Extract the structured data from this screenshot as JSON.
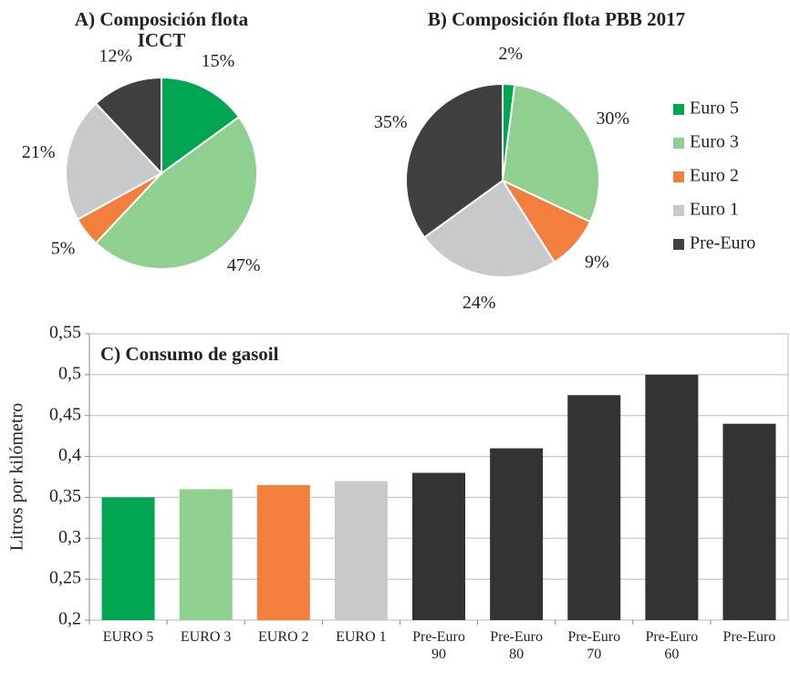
{
  "chart_data": [
    {
      "type": "pie",
      "title": "A) Composición flota ICCT",
      "categories": [
        "Euro 5",
        "Euro 3",
        "Euro 2",
        "Euro 1",
        "Pre-Euro"
      ],
      "values": [
        15,
        47,
        5,
        21,
        12
      ],
      "value_labels": [
        "15%",
        "47%",
        "5%",
        "21%",
        "12%"
      ],
      "colors": [
        "#00a651",
        "#8fcf8f",
        "#f37f3e",
        "#c8c9cb",
        "#404041"
      ]
    },
    {
      "type": "pie",
      "title": "B) Composición flota PBB 2017",
      "categories": [
        "Euro 5",
        "Euro 3",
        "Euro 2",
        "Euro 1",
        "Pre-Euro"
      ],
      "values": [
        2,
        30,
        9,
        24,
        35
      ],
      "value_labels": [
        "2%",
        "30%",
        "9%",
        "24%",
        "35%"
      ],
      "colors": [
        "#00a651",
        "#8fcf8f",
        "#f37f3e",
        "#c8c9cb",
        "#404041"
      ],
      "legend": "right"
    },
    {
      "type": "bar",
      "title": "C) Consumo de gasoil",
      "ylabel": "Litros por kilómetro",
      "categories": [
        "EURO 5",
        "EURO 3",
        "EURO 2",
        "EURO 1",
        "Pre-Euro 90",
        "Pre-Euro 80",
        "Pre-Euro 70",
        "Pre-Euro 60",
        "Pre-Euro"
      ],
      "values": [
        0.35,
        0.36,
        0.365,
        0.37,
        0.38,
        0.41,
        0.475,
        0.5,
        0.44
      ],
      "colors": [
        "#00a651",
        "#8fcf8f",
        "#f37f3e",
        "#c8c9cb",
        "#333333",
        "#333333",
        "#333333",
        "#333333",
        "#333333"
      ],
      "ylim": [
        0.2,
        0.55
      ],
      "yticks": [
        {
          "value": 0.2,
          "label": "0,2"
        },
        {
          "value": 0.25,
          "label": "0,25"
        },
        {
          "value": 0.3,
          "label": "0,3"
        },
        {
          "value": 0.35,
          "label": "0,35"
        },
        {
          "value": 0.4,
          "label": "0,4"
        },
        {
          "value": 0.45,
          "label": "0,45"
        },
        {
          "value": 0.5,
          "label": "0,5"
        },
        {
          "value": 0.55,
          "label": "0,55"
        }
      ],
      "grid": true
    }
  ]
}
